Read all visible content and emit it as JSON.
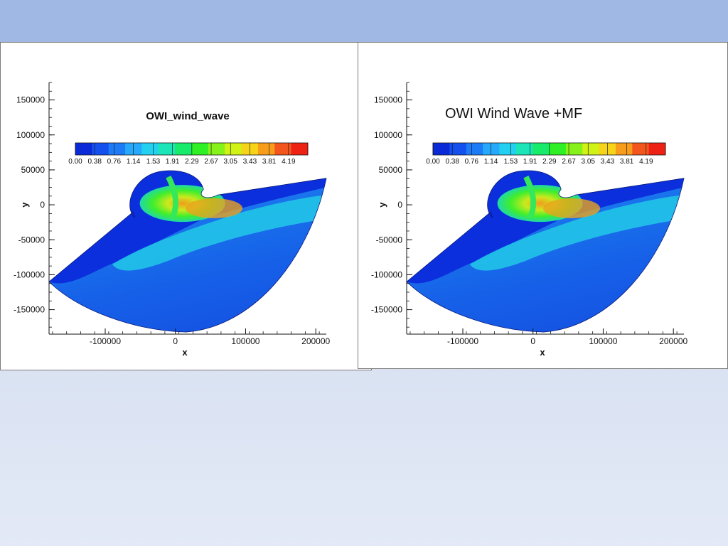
{
  "slide": {
    "background_band_color": "#9fb8e4",
    "background_gradient": [
      "#c6d3ec",
      "#e3e9f6"
    ]
  },
  "chart_data": [
    {
      "type": "heatmap",
      "title": "OWI_wind_wave",
      "xlabel": "x",
      "ylabel": "y",
      "xlim": [
        -180000,
        215000
      ],
      "ylim": [
        -185000,
        175000
      ],
      "x_ticks": [
        -100000,
        0,
        100000,
        200000
      ],
      "y_ticks": [
        150000,
        100000,
        50000,
        0,
        -50000,
        -100000,
        -150000
      ],
      "colorbar": {
        "min": 0.0,
        "max": 4.57,
        "tick_labels": [
          "0.00",
          "0.38",
          "0.76",
          "1.14",
          "1.53",
          "1.91",
          "2.29",
          "2.67",
          "3.05",
          "3.43",
          "3.81",
          "4.19"
        ],
        "colors": [
          "#0a2ad8",
          "#1450ee",
          "#1e7bf6",
          "#26a8fb",
          "#23d0f0",
          "#1ce6b8",
          "#18ea6a",
          "#2ef024",
          "#86f21a",
          "#d0f214",
          "#f6d41a",
          "#f89c1c",
          "#f2561c",
          "#ee2214"
        ]
      }
    },
    {
      "type": "heatmap",
      "title": "OWI Wind Wave +MF",
      "xlabel": "x",
      "ylabel": "y",
      "xlim": [
        -180000,
        215000
      ],
      "ylim": [
        -185000,
        175000
      ],
      "x_ticks": [
        -100000,
        0,
        100000,
        200000
      ],
      "y_ticks": [
        150000,
        100000,
        50000,
        0,
        -50000,
        -100000,
        -150000
      ],
      "colorbar": {
        "min": 0.0,
        "max": 4.57,
        "tick_labels": [
          "0.00",
          "0.38",
          "0.76",
          "1.14",
          "1.53",
          "1.91",
          "2.29",
          "2.67",
          "3.05",
          "3.43",
          "3.81",
          "4.19"
        ],
        "colors": [
          "#0a2ad8",
          "#1450ee",
          "#1e7bf6",
          "#26a8fb",
          "#23d0f0",
          "#1ce6b8",
          "#18ea6a",
          "#2ef024",
          "#86f21a",
          "#d0f214",
          "#f6d41a",
          "#f89c1c",
          "#f2561c",
          "#ee2214"
        ]
      }
    }
  ]
}
